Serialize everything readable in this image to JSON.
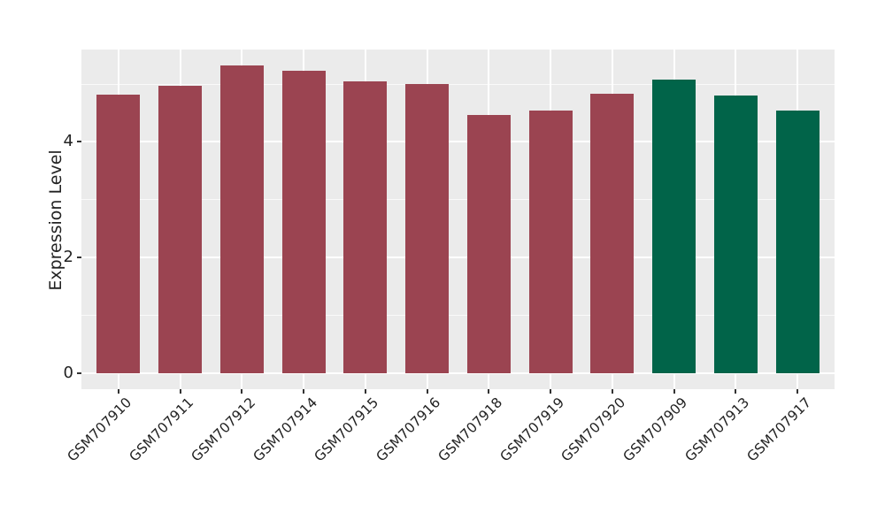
{
  "chart_data": {
    "type": "bar",
    "title": "",
    "xlabel": "",
    "ylabel": "Expression Level",
    "categories": [
      "GSM707910",
      "GSM707911",
      "GSM707912",
      "GSM707914",
      "GSM707915",
      "GSM707916",
      "GSM707918",
      "GSM707919",
      "GSM707920",
      "GSM707909",
      "GSM707913",
      "GSM707917"
    ],
    "values": [
      4.82,
      4.97,
      5.32,
      5.23,
      5.05,
      5.01,
      4.47,
      4.55,
      4.84,
      5.08,
      4.81,
      4.54
    ],
    "bar_colors": [
      "#9B4451",
      "#9B4451",
      "#9B4451",
      "#9B4451",
      "#9B4451",
      "#9B4451",
      "#9B4451",
      "#9B4451",
      "#9B4451",
      "#016449",
      "#016449",
      "#016449"
    ],
    "group_colors": {
      "red_group": "#9B4451",
      "green_group": "#016449"
    },
    "ytick_labels": [
      "0",
      "2",
      "4"
    ],
    "ytick_values": [
      0,
      2,
      4
    ],
    "minor_tick_values": [
      1,
      3,
      5
    ],
    "ylim": [
      -0.28,
      5.6
    ],
    "bar_width_fraction": 0.7,
    "grid": "white major+minor horizontal gridlines, one white vertical gridline per category",
    "legend": "none",
    "panel_background": "#EBEBEB",
    "grid_color": "#FFFFFF",
    "axis_text_color": "#222222",
    "tick_mark_color": "#333333",
    "background": "#FFFFFF"
  }
}
